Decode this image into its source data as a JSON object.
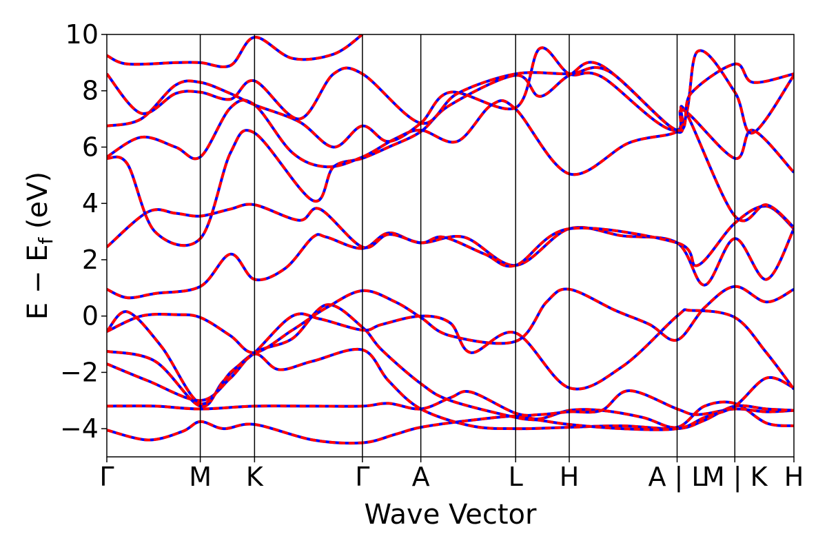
{
  "chart_data": {
    "type": "line",
    "title": "",
    "xlabel": "Wave Vector",
    "ylabel": {
      "prefix": "E − E",
      "subscript": "f",
      "suffix": " (eV)"
    },
    "ylim": [
      -5,
      10
    ],
    "yticks": [
      -4,
      -2,
      0,
      2,
      4,
      6,
      8,
      10
    ],
    "ytick_labels": [
      "−4",
      "−2",
      "0",
      "2",
      "4",
      "6",
      "8",
      "10"
    ],
    "xlim": [
      0,
      10
    ],
    "kpoint_labels": [
      {
        "label": "Γ",
        "x": 0.0
      },
      {
        "label": "M",
        "x": 1.36
      },
      {
        "label": "K",
        "x": 2.15
      },
      {
        "label": "Γ",
        "x": 3.72
      },
      {
        "label": "A",
        "x": 4.57
      },
      {
        "label": "L",
        "x": 5.95
      },
      {
        "label": "H",
        "x": 6.73
      },
      {
        "label": "A | L",
        "x": 8.3
      },
      {
        "label": "M | K",
        "x": 9.14
      },
      {
        "label": "H",
        "x": 10.0
      }
    ],
    "segment_boundaries": [
      1.36,
      2.15,
      3.72,
      4.57,
      5.95,
      6.73,
      8.3,
      9.14
    ],
    "series_colors": {
      "overlay": "#ff0000",
      "underlay": "#0000ff"
    },
    "series": [
      {
        "band": 1,
        "points": [
          [
            0,
            -4.05
          ],
          [
            0.6,
            -4.4
          ],
          [
            1.1,
            -4.1
          ],
          [
            1.36,
            -3.75
          ],
          [
            1.7,
            -4.0
          ],
          [
            2.15,
            -3.85
          ],
          [
            3.0,
            -4.4
          ],
          [
            3.72,
            -4.5
          ],
          [
            4.2,
            -4.2
          ],
          [
            4.57,
            -3.95
          ],
          [
            5.3,
            -3.7
          ],
          [
            5.95,
            -3.55
          ],
          [
            6.3,
            -3.65
          ],
          [
            6.73,
            -3.35
          ],
          [
            7.2,
            -3.35
          ],
          [
            7.8,
            -3.6
          ],
          [
            8.3,
            -3.95
          ],
          [
            8.7,
            -3.2
          ],
          [
            9.14,
            -3.1
          ],
          [
            9.6,
            -3.8
          ],
          [
            10,
            -3.9
          ]
        ]
      },
      {
        "band": 2,
        "points": [
          [
            0,
            -3.2
          ],
          [
            0.7,
            -3.2
          ],
          [
            1.36,
            -3.3
          ],
          [
            2.15,
            -3.2
          ],
          [
            3.0,
            -3.2
          ],
          [
            3.72,
            -3.2
          ],
          [
            4.1,
            -3.1
          ],
          [
            4.57,
            -3.3
          ],
          [
            5.0,
            -2.9
          ],
          [
            5.3,
            -2.7
          ],
          [
            5.95,
            -3.45
          ],
          [
            6.3,
            -3.5
          ],
          [
            6.73,
            -3.4
          ],
          [
            7.2,
            -3.35
          ],
          [
            7.6,
            -2.65
          ],
          [
            8.3,
            -3.3
          ],
          [
            8.6,
            -3.5
          ],
          [
            9.14,
            -3.3
          ],
          [
            9.6,
            -3.4
          ],
          [
            10,
            -3.35
          ]
        ]
      },
      {
        "band": 3,
        "points": [
          [
            0,
            -1.7
          ],
          [
            0.6,
            -2.3
          ],
          [
            1.36,
            -3.0
          ],
          [
            1.8,
            -2.2
          ],
          [
            2.15,
            -1.35
          ],
          [
            2.5,
            -1.9
          ],
          [
            3.0,
            -1.6
          ],
          [
            3.72,
            -1.2
          ],
          [
            4.1,
            -2.3
          ],
          [
            4.57,
            -3.3
          ],
          [
            5.3,
            -3.9
          ],
          [
            5.95,
            -4.0
          ],
          [
            6.73,
            -3.95
          ],
          [
            7.5,
            -3.9
          ],
          [
            8.3,
            -4.0
          ],
          [
            8.7,
            -3.7
          ],
          [
            9.14,
            -3.2
          ],
          [
            9.6,
            -3.3
          ],
          [
            10,
            -3.35
          ]
        ]
      },
      {
        "band": 4,
        "points": [
          [
            0,
            -1.25
          ],
          [
            0.7,
            -1.6
          ],
          [
            1.36,
            -3.2
          ],
          [
            1.7,
            -2.3
          ],
          [
            2.15,
            -1.3
          ],
          [
            2.7,
            -0.8
          ],
          [
            3.2,
            0.4
          ],
          [
            3.72,
            -0.4
          ],
          [
            4.0,
            -1.2
          ],
          [
            4.57,
            -2.4
          ],
          [
            5.0,
            -3.0
          ],
          [
            5.95,
            -3.6
          ],
          [
            6.3,
            -3.7
          ],
          [
            6.73,
            -3.85
          ],
          [
            7.5,
            -4.0
          ],
          [
            8.3,
            -4.0
          ],
          [
            8.7,
            -3.6
          ],
          [
            9.14,
            -3.2
          ],
          [
            9.6,
            -2.2
          ],
          [
            10,
            -2.55
          ]
        ]
      },
      {
        "band": 5,
        "points": [
          [
            0,
            -0.55
          ],
          [
            0.3,
            0.15
          ],
          [
            0.8,
            -1.1
          ],
          [
            1.36,
            -3.1
          ],
          [
            1.8,
            -2.0
          ],
          [
            2.15,
            -1.3
          ],
          [
            2.7,
            0.0
          ],
          [
            3.1,
            -0.1
          ],
          [
            3.72,
            -0.5
          ],
          [
            4.0,
            -0.3
          ],
          [
            4.57,
            0.0
          ],
          [
            5.0,
            -0.25
          ],
          [
            5.3,
            -1.3
          ],
          [
            5.95,
            -0.6
          ],
          [
            6.73,
            -2.55
          ],
          [
            7.5,
            -1.8
          ],
          [
            8.3,
            0.0
          ],
          [
            8.5,
            0.2
          ],
          [
            9.14,
            -0.05
          ],
          [
            9.6,
            -1.3
          ],
          [
            10,
            -2.6
          ]
        ]
      },
      {
        "band": 6,
        "points": [
          [
            0,
            -0.55
          ],
          [
            0.5,
            0.0
          ],
          [
            1.0,
            0.05
          ],
          [
            1.36,
            -0.05
          ],
          [
            1.8,
            -0.7
          ],
          [
            2.15,
            -1.3
          ],
          [
            2.7,
            -0.5
          ],
          [
            3.2,
            0.3
          ],
          [
            3.72,
            0.9
          ],
          [
            4.2,
            0.5
          ],
          [
            4.57,
            -0.05
          ],
          [
            5.0,
            -0.7
          ],
          [
            5.95,
            -0.9
          ],
          [
            6.4,
            0.5
          ],
          [
            6.73,
            0.95
          ],
          [
            7.4,
            0.2
          ],
          [
            7.9,
            -0.3
          ],
          [
            8.3,
            -0.85
          ],
          [
            8.7,
            0.3
          ],
          [
            9.14,
            1.05
          ],
          [
            9.6,
            0.5
          ],
          [
            10,
            0.95
          ]
        ]
      },
      {
        "band": 7,
        "points": [
          [
            0,
            0.95
          ],
          [
            0.3,
            0.65
          ],
          [
            0.7,
            0.8
          ],
          [
            1.36,
            1.05
          ],
          [
            1.8,
            2.2
          ],
          [
            2.15,
            1.3
          ],
          [
            2.6,
            1.7
          ],
          [
            3.0,
            2.8
          ],
          [
            3.2,
            2.8
          ],
          [
            3.72,
            2.4
          ],
          [
            4.1,
            2.95
          ],
          [
            4.57,
            2.6
          ],
          [
            5.2,
            2.8
          ],
          [
            5.95,
            1.8
          ],
          [
            6.73,
            3.1
          ],
          [
            7.5,
            2.85
          ],
          [
            8.3,
            2.6
          ],
          [
            8.7,
            1.1
          ],
          [
            9.14,
            2.75
          ],
          [
            9.6,
            1.3
          ],
          [
            10,
            3.1
          ]
        ]
      },
      {
        "band": 8,
        "points": [
          [
            0,
            2.45
          ],
          [
            0.6,
            3.7
          ],
          [
            1.0,
            3.65
          ],
          [
            1.36,
            3.55
          ],
          [
            1.8,
            3.8
          ],
          [
            2.15,
            3.95
          ],
          [
            2.8,
            3.4
          ],
          [
            3.1,
            3.8
          ],
          [
            3.72,
            2.45
          ],
          [
            4.1,
            2.9
          ],
          [
            4.57,
            2.6
          ],
          [
            4.9,
            2.8
          ],
          [
            5.5,
            2.2
          ],
          [
            5.95,
            1.8
          ],
          [
            6.73,
            3.1
          ],
          [
            8.3,
            2.6
          ],
          [
            8.6,
            1.8
          ],
          [
            9.14,
            3.3
          ],
          [
            9.6,
            3.9
          ],
          [
            10,
            3.1
          ]
        ]
      },
      {
        "band": 9,
        "points": [
          [
            0,
            5.6
          ],
          [
            0.3,
            5.4
          ],
          [
            0.7,
            3.0
          ],
          [
            1.36,
            2.75
          ],
          [
            1.8,
            5.8
          ],
          [
            2.15,
            6.5
          ],
          [
            3.0,
            4.1
          ],
          [
            3.3,
            5.3
          ],
          [
            3.72,
            5.6
          ],
          [
            4.1,
            6.0
          ],
          [
            4.57,
            6.55
          ],
          [
            5.0,
            7.5
          ],
          [
            5.95,
            8.55
          ],
          [
            6.3,
            7.8
          ],
          [
            6.73,
            8.55
          ],
          [
            7.2,
            8.9
          ],
          [
            8.3,
            6.55
          ],
          [
            8.4,
            7.35
          ],
          [
            9.14,
            3.55
          ],
          [
            9.6,
            3.95
          ],
          [
            10,
            3.15
          ]
        ]
      },
      {
        "band": 10,
        "points": [
          [
            0,
            5.65
          ],
          [
            0.5,
            6.35
          ],
          [
            1.0,
            6.0
          ],
          [
            1.36,
            5.65
          ],
          [
            1.8,
            7.4
          ],
          [
            2.15,
            7.5
          ],
          [
            2.7,
            5.8
          ],
          [
            3.2,
            5.3
          ],
          [
            3.72,
            5.65
          ],
          [
            4.2,
            6.3
          ],
          [
            4.57,
            6.6
          ],
          [
            5.1,
            6.2
          ],
          [
            5.6,
            7.5
          ],
          [
            5.95,
            7.35
          ],
          [
            6.73,
            5.05
          ],
          [
            7.6,
            6.15
          ],
          [
            8.3,
            6.55
          ],
          [
            8.4,
            7.3
          ],
          [
            9.14,
            5.6
          ],
          [
            9.4,
            6.6
          ],
          [
            10,
            5.1
          ]
        ]
      },
      {
        "band": 11,
        "points": [
          [
            0,
            6.75
          ],
          [
            0.5,
            7.0
          ],
          [
            1.0,
            8.2
          ],
          [
            1.36,
            8.3
          ],
          [
            1.8,
            7.9
          ],
          [
            2.15,
            7.5
          ],
          [
            2.8,
            6.9
          ],
          [
            3.3,
            6.0
          ],
          [
            3.72,
            6.75
          ],
          [
            4.1,
            6.2
          ],
          [
            4.57,
            6.85
          ],
          [
            5.0,
            7.95
          ],
          [
            5.95,
            7.4
          ],
          [
            6.3,
            9.5
          ],
          [
            6.73,
            8.6
          ],
          [
            7.2,
            8.5
          ],
          [
            8.3,
            6.6
          ],
          [
            8.6,
            9.4
          ],
          [
            9.14,
            7.95
          ],
          [
            9.4,
            6.5
          ],
          [
            10,
            8.55
          ]
        ]
      },
      {
        "band": 12,
        "points": [
          [
            0,
            8.6
          ],
          [
            0.5,
            7.2
          ],
          [
            1.0,
            7.9
          ],
          [
            1.36,
            7.95
          ],
          [
            1.8,
            7.7
          ],
          [
            2.15,
            8.35
          ],
          [
            2.8,
            7.0
          ],
          [
            3.3,
            8.6
          ],
          [
            3.72,
            8.6
          ],
          [
            4.57,
            6.85
          ],
          [
            5.1,
            7.9
          ],
          [
            5.95,
            8.6
          ],
          [
            6.73,
            8.6
          ],
          [
            7.3,
            8.7
          ],
          [
            8.3,
            6.6
          ],
          [
            8.5,
            7.9
          ],
          [
            9.14,
            8.95
          ],
          [
            9.4,
            8.3
          ],
          [
            10,
            8.6
          ]
        ]
      },
      {
        "band": 13,
        "points": [
          [
            0,
            9.25
          ],
          [
            0.3,
            8.95
          ],
          [
            1.0,
            9.0
          ],
          [
            1.36,
            9.0
          ],
          [
            1.8,
            8.9
          ],
          [
            2.15,
            9.9
          ],
          [
            2.7,
            9.15
          ],
          [
            3.3,
            9.3
          ],
          [
            3.72,
            10.0
          ]
        ]
      }
    ]
  }
}
